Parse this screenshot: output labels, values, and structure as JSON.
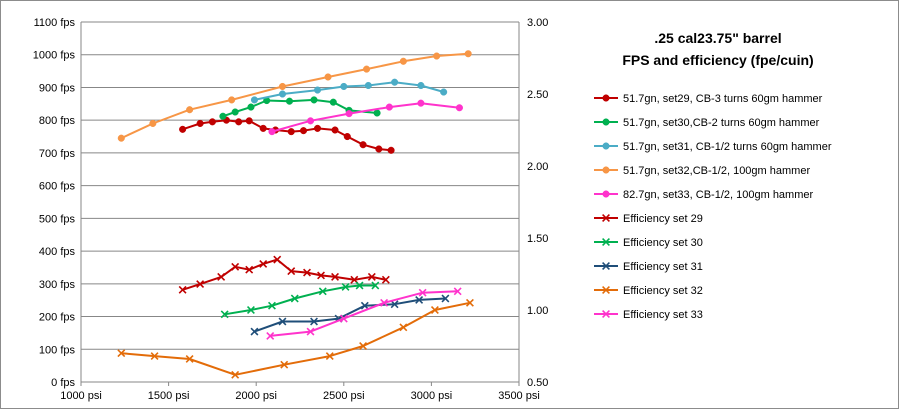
{
  "chart_data": {
    "type": "line",
    "title_lines": [
      ".25 cal23.75\" barrel",
      "FPS and efficiency (fpe/cuin)"
    ],
    "x_axis": {
      "min": 1000,
      "max": 3500,
      "step": 500,
      "unit": "psi"
    },
    "y_left": {
      "min": 0,
      "max": 1100,
      "step": 100,
      "unit": "fps"
    },
    "y_right": {
      "min": 0.5,
      "max": 3.0,
      "step": 0.5,
      "ticks": [
        "0.50",
        "1.00",
        "1.50",
        "2.00",
        "2.50",
        "3.00"
      ]
    },
    "grid": "horizontal",
    "legend_position": "right",
    "series": [
      {
        "name": "51.7gn, set29, CB-3 turns 60gm hammer",
        "axis": "left",
        "marker": "circle",
        "color": "#c00000",
        "x": [
          1580,
          1680,
          1750,
          1830,
          1900,
          1960,
          2040,
          2110,
          2200,
          2270,
          2350,
          2450,
          2520,
          2610,
          2700,
          2770
        ],
        "y": [
          772,
          790,
          795,
          800,
          795,
          798,
          775,
          770,
          765,
          768,
          775,
          770,
          750,
          725,
          712,
          708
        ]
      },
      {
        "name": "51.7gn, set30,CB-2 turns 60gm hammer",
        "axis": "left",
        "marker": "circle",
        "color": "#00b050",
        "x": [
          1810,
          1880,
          1970,
          2060,
          2190,
          2330,
          2440,
          2530,
          2690
        ],
        "y": [
          812,
          825,
          840,
          860,
          858,
          862,
          855,
          830,
          822
        ]
      },
      {
        "name": "51.7gn, set31, CB-1/2 turns 60gm hammer",
        "axis": "left",
        "marker": "circle",
        "color": "#4bacc6",
        "x": [
          1990,
          2150,
          2350,
          2500,
          2640,
          2790,
          2940,
          3070
        ],
        "y": [
          862,
          880,
          892,
          903,
          906,
          916,
          906,
          886
        ]
      },
      {
        "name": "51.7gn, set32,CB-1/2, 100gm hammer",
        "axis": "left",
        "marker": "circle",
        "color": "#f79646",
        "x": [
          1230,
          1410,
          1620,
          1860,
          2150,
          2410,
          2630,
          2840,
          3030,
          3210
        ],
        "y": [
          745,
          790,
          832,
          862,
          903,
          932,
          956,
          980,
          996,
          1003
        ]
      },
      {
        "name": "82.7gn, set33, CB-1/2, 100gm hammer",
        "axis": "left",
        "marker": "circle",
        "color": "#ff33cc",
        "x": [
          2090,
          2310,
          2530,
          2760,
          2940,
          3160
        ],
        "y": [
          765,
          798,
          820,
          840,
          852,
          838
        ]
      },
      {
        "name": "Efficiency set 29",
        "axis": "right",
        "marker": "x",
        "color": "#c00000",
        "x": [
          1580,
          1680,
          1800,
          1880,
          1960,
          2040,
          2120,
          2200,
          2290,
          2370,
          2450,
          2560,
          2660,
          2740
        ],
        "y": [
          1.14,
          1.18,
          1.23,
          1.3,
          1.28,
          1.32,
          1.35,
          1.27,
          1.26,
          1.24,
          1.23,
          1.21,
          1.23,
          1.21
        ]
      },
      {
        "name": "Efficiency set 30",
        "axis": "right",
        "marker": "x",
        "color": "#00b050",
        "x": [
          1820,
          1970,
          2090,
          2220,
          2380,
          2510,
          2590,
          2680
        ],
        "y": [
          0.97,
          1.0,
          1.03,
          1.08,
          1.13,
          1.16,
          1.17,
          1.17
        ]
      },
      {
        "name": "Efficiency set 31",
        "axis": "right",
        "marker": "x",
        "color": "#1f4e79",
        "x": [
          1990,
          2150,
          2330,
          2470,
          2620,
          2790,
          2930,
          3080
        ],
        "y": [
          0.85,
          0.92,
          0.92,
          0.94,
          1.03,
          1.04,
          1.07,
          1.08
        ]
      },
      {
        "name": "Efficiency set 32",
        "axis": "right",
        "marker": "x",
        "color": "#e36c09",
        "x": [
          1230,
          1420,
          1620,
          1880,
          2160,
          2420,
          2610,
          2840,
          3020,
          3220
        ],
        "y": [
          0.7,
          0.68,
          0.66,
          0.55,
          0.62,
          0.68,
          0.75,
          0.88,
          1.0,
          1.05
        ]
      },
      {
        "name": "Efficiency set 33",
        "axis": "right",
        "marker": "x",
        "color": "#ff33cc",
        "x": [
          2080,
          2310,
          2500,
          2730,
          2950,
          3150
        ],
        "y": [
          0.82,
          0.85,
          0.94,
          1.05,
          1.12,
          1.13
        ]
      }
    ]
  }
}
